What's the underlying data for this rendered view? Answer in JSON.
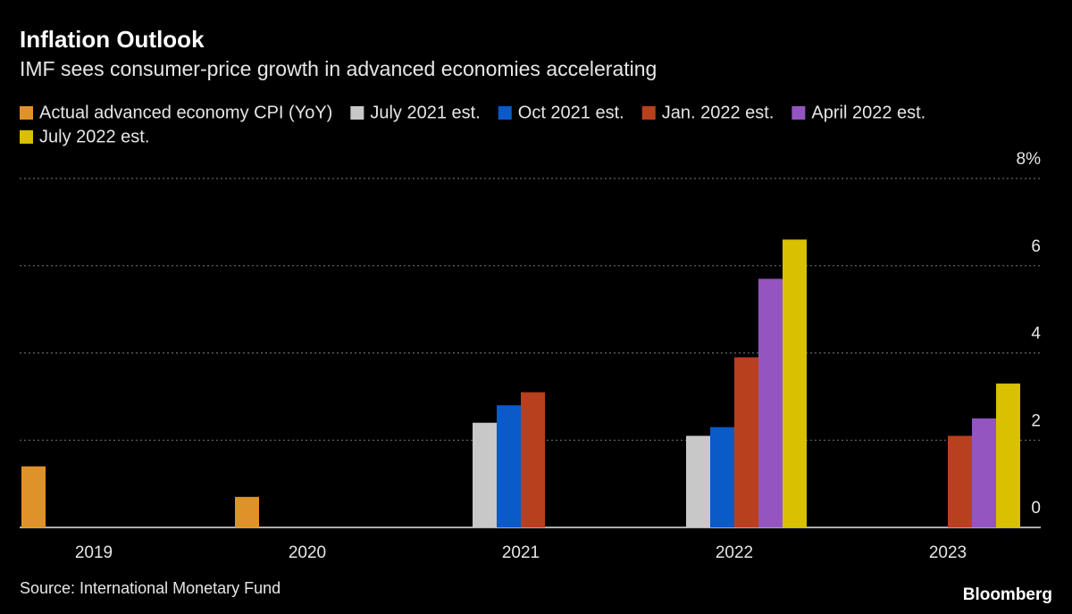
{
  "chart_data": {
    "type": "bar",
    "title": "Inflation Outlook",
    "subtitle": "IMF sees consumer-price growth in advanced economies accelerating",
    "source": "Source: International Monetary Fund",
    "brand": "Bloomberg",
    "categories": [
      "2019",
      "2020",
      "2021",
      "2022",
      "2023"
    ],
    "series": [
      {
        "name": "Actual advanced economy CPI (YoY)",
        "color": "#e0922a",
        "values": [
          1.4,
          0.7,
          null,
          null,
          null
        ]
      },
      {
        "name": "July 2021 est.",
        "color": "#c8c8c8",
        "values": [
          null,
          null,
          2.4,
          2.1,
          null
        ]
      },
      {
        "name": "Oct 2021 est.",
        "color": "#0a5ac8",
        "values": [
          null,
          null,
          2.8,
          2.3,
          null
        ]
      },
      {
        "name": "Jan. 2022 est.",
        "color": "#b8401e",
        "values": [
          null,
          null,
          3.1,
          3.9,
          2.1
        ]
      },
      {
        "name": "April 2022 est.",
        "color": "#9455c0",
        "values": [
          null,
          null,
          null,
          5.7,
          2.5
        ]
      },
      {
        "name": "July 2022 est.",
        "color": "#d9c000",
        "values": [
          null,
          null,
          null,
          6.6,
          3.3
        ]
      }
    ],
    "ylim": [
      0,
      8
    ],
    "yticks": [
      0,
      2,
      4,
      6,
      {
        "value": 8,
        "label": "8%"
      }
    ],
    "grid": true
  }
}
